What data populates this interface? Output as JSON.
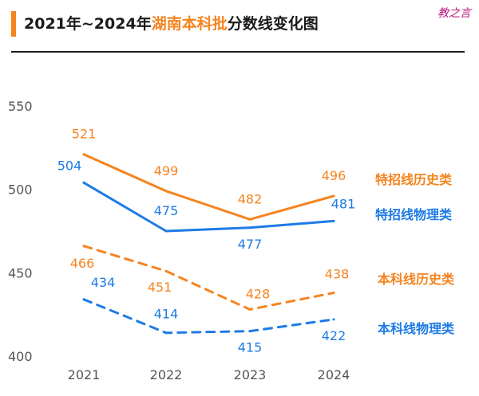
{
  "header": {
    "title_prefix": "2021年~2024年",
    "title_highlight": "湖南本科批",
    "title_suffix": "分数线变化图",
    "watermark": "教之言"
  },
  "colors": {
    "orange": "#f5841f",
    "blue": "#1e7be6",
    "tick": "#555555"
  },
  "chart_data": {
    "type": "line",
    "title": "2021年~2024年湖南本科批分数线变化图",
    "xlabel": "",
    "ylabel": "",
    "categories": [
      "2021",
      "2022",
      "2023",
      "2024"
    ],
    "ylim": [
      400,
      550
    ],
    "yticks": [
      550,
      500,
      450,
      400
    ],
    "grid": false,
    "legend": "right, inline labels",
    "series": [
      {
        "name": "特招线历史类",
        "values": [
          521,
          499,
          482,
          496
        ],
        "color": "#f5841f",
        "style": "solid"
      },
      {
        "name": "特招线物理类",
        "values": [
          504,
          475,
          477,
          481
        ],
        "color": "#1e7be6",
        "style": "solid"
      },
      {
        "name": "本科线历史类",
        "values": [
          466,
          451,
          428,
          438
        ],
        "color": "#f5841f",
        "style": "dashed"
      },
      {
        "name": "本科线物理类",
        "values": [
          434,
          414,
          415,
          422
        ],
        "color": "#1e7be6",
        "style": "dashed"
      }
    ]
  }
}
